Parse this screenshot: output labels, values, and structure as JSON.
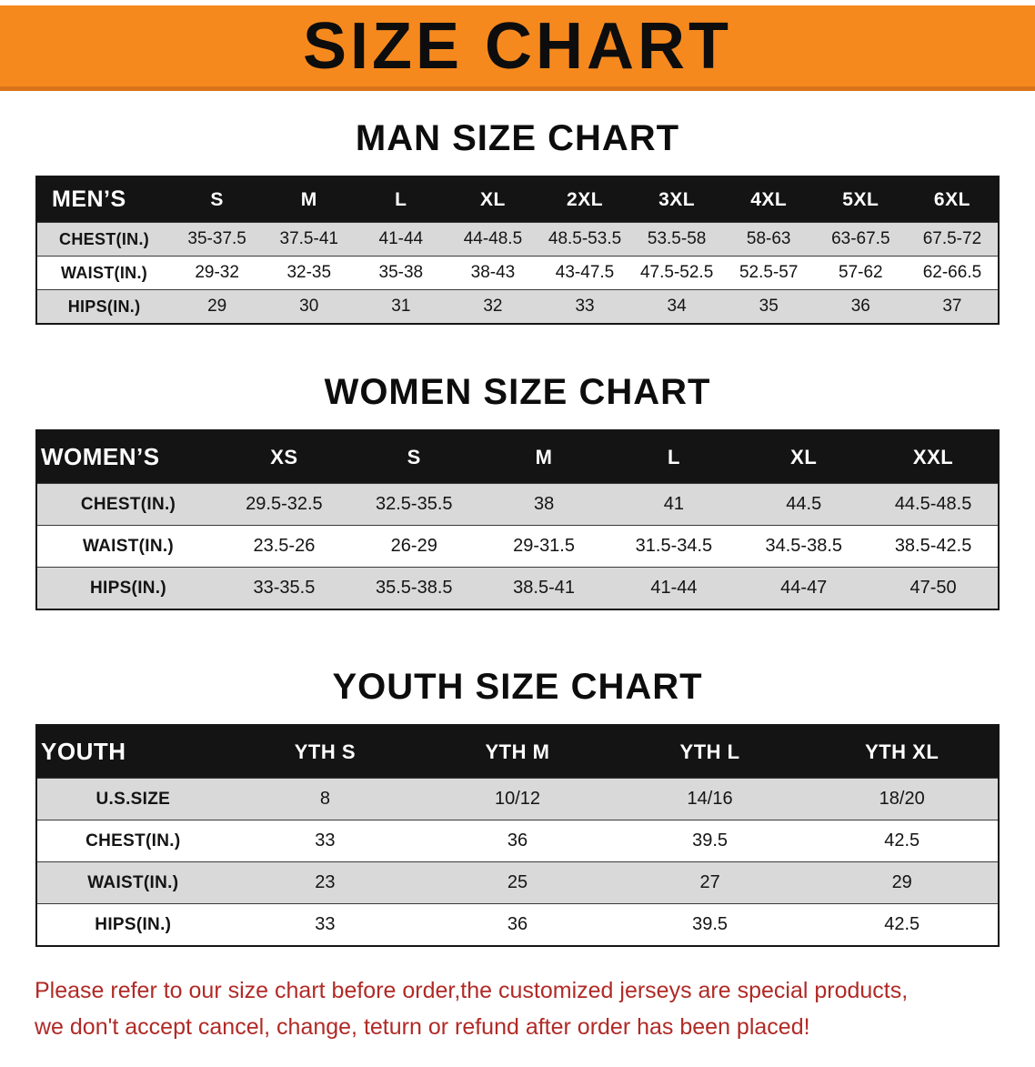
{
  "colors": {
    "banner_bg": "#f6891e",
    "banner_border": "#d9731a",
    "header_bg": "#141414",
    "stripe": "#d9d9d9",
    "notice_text": "#b02a26"
  },
  "banner": {
    "title": "SIZE CHART"
  },
  "sections": [
    {
      "heading": "MAN SIZE CHART",
      "table": {
        "header": [
          "MEN’S",
          "S",
          "M",
          "L",
          "XL",
          "2XL",
          "3XL",
          "4XL",
          "5XL",
          "6XL"
        ],
        "rows": [
          {
            "label": "CHEST(IN.)",
            "values": [
              "35-37.5",
              "37.5-41",
              "41-44",
              "44-48.5",
              "48.5-53.5",
              "53.5-58",
              "58-63",
              "63-67.5",
              "67.5-72"
            ]
          },
          {
            "label": "WAIST(IN.)",
            "values": [
              "29-32",
              "32-35",
              "35-38",
              "38-43",
              "43-47.5",
              "47.5-52.5",
              "52.5-57",
              "57-62",
              "62-66.5"
            ]
          },
          {
            "label": "HIPS(IN.)",
            "values": [
              "29",
              "30",
              "31",
              "32",
              "33",
              "34",
              "35",
              "36",
              "37"
            ]
          }
        ]
      }
    },
    {
      "heading": "WOMEN SIZE CHART",
      "table": {
        "header": [
          "WOMEN’S",
          "XS",
          "S",
          "M",
          "L",
          "XL",
          "XXL"
        ],
        "rows": [
          {
            "label": "CHEST(IN.)",
            "values": [
              "29.5-32.5",
              "32.5-35.5",
              "38",
              "41",
              "44.5",
              "44.5-48.5"
            ]
          },
          {
            "label": "WAIST(IN.)",
            "values": [
              "23.5-26",
              "26-29",
              "29-31.5",
              "31.5-34.5",
              "34.5-38.5",
              "38.5-42.5"
            ]
          },
          {
            "label": "HIPS(IN.)",
            "values": [
              "33-35.5",
              "35.5-38.5",
              "38.5-41",
              "41-44",
              "44-47",
              "47-50"
            ]
          }
        ]
      }
    },
    {
      "heading": "YOUTH SIZE CHART",
      "table": {
        "header": [
          "YOUTH",
          "YTH S",
          "YTH M",
          "YTH L",
          "YTH XL"
        ],
        "rows": [
          {
            "label": "U.S.SIZE",
            "values": [
              "8",
              "10/12",
              "14/16",
              "18/20"
            ]
          },
          {
            "label": "CHEST(IN.)",
            "values": [
              "33",
              "36",
              "39.5",
              "42.5"
            ]
          },
          {
            "label": "WAIST(IN.)",
            "values": [
              "23",
              "25",
              "27",
              "29"
            ]
          },
          {
            "label": "HIPS(IN.)",
            "values": [
              "33",
              "36",
              "39.5",
              "42.5"
            ]
          }
        ]
      }
    }
  ],
  "notice": {
    "line1": "Please refer to our size chart before order,the customized jerseys are special products,",
    "line2": "we don't accept cancel, change, teturn or refund after order has been placed!"
  }
}
